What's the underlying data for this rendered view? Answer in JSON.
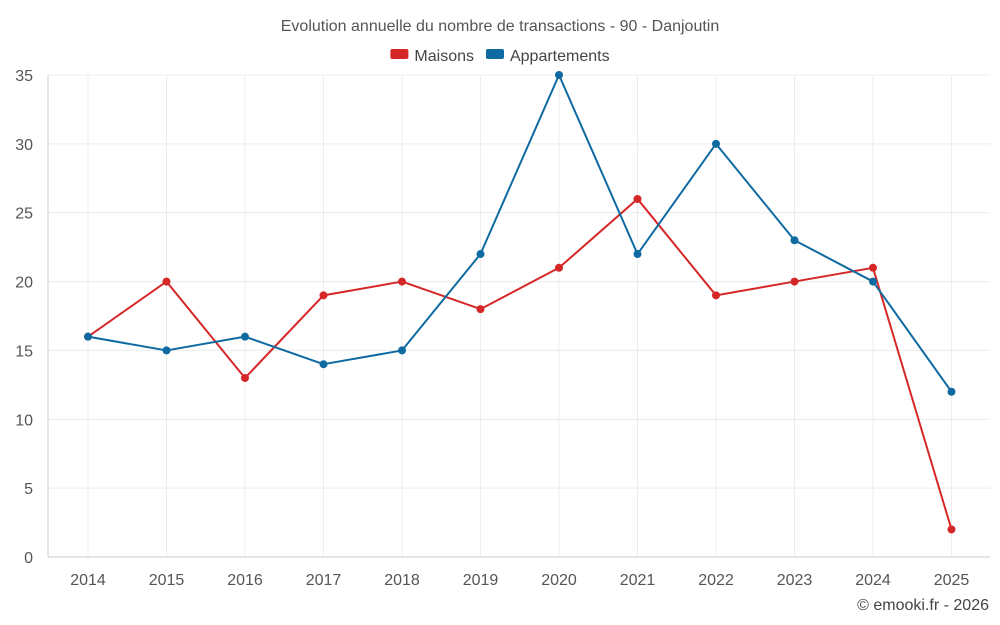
{
  "chart_data": {
    "type": "line",
    "title": "Evolution annuelle du nombre de transactions - 90 - Danjoutin",
    "xlabel": "",
    "ylabel": "",
    "categories": [
      "2014",
      "2015",
      "2016",
      "2017",
      "2018",
      "2019",
      "2020",
      "2021",
      "2022",
      "2023",
      "2024",
      "2025"
    ],
    "ylim": [
      0,
      35
    ],
    "yticks": [
      0,
      5,
      10,
      15,
      20,
      25,
      30,
      35
    ],
    "grid": true,
    "legend_position": "top-center",
    "series": [
      {
        "name": "Maisons",
        "color": "#d62728",
        "values": [
          16,
          20,
          13,
          19,
          20,
          18,
          21,
          26,
          19,
          20,
          21,
          2
        ]
      },
      {
        "name": "Appartements",
        "color": "#0e6aa0",
        "values": [
          16,
          15,
          16,
          14,
          15,
          22,
          35,
          22,
          30,
          23,
          20,
          12
        ]
      }
    ],
    "credit": "© emooki.fr - 2026"
  }
}
